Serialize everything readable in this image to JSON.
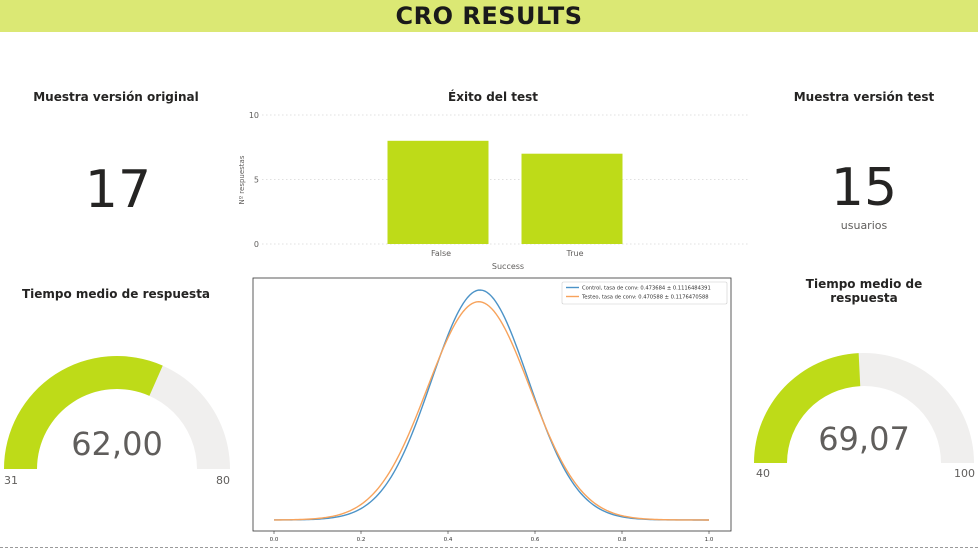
{
  "banner": {
    "title": "CRO RESULTS"
  },
  "kpi_original": {
    "title": "Muestra versión original",
    "value": "17"
  },
  "kpi_test": {
    "title": "Muestra versión test",
    "value": "15",
    "unit": "usuarios"
  },
  "gauge_left": {
    "title": "Tiempo medio de respuesta",
    "value": "62,00",
    "min_label": "31",
    "max_label": "80",
    "num_value": 62.0,
    "min": 31,
    "max": 80
  },
  "gauge_right": {
    "title": "Tiempo medio de respuesta",
    "value": "69,07",
    "min_label": "40",
    "max_label": "100",
    "num_value": 69.07,
    "min": 40,
    "max": 100
  },
  "colors": {
    "accent": "#bedb18",
    "banner": "#dbe874",
    "gauge_bg": "#f0efee",
    "control": "#4c93c7",
    "test": "#f7a35c"
  },
  "chart_data": [
    {
      "type": "bar",
      "title": "Éxito del test",
      "xlabel": "Success",
      "ylabel": "Nº respuestas",
      "categories": [
        "False",
        "True"
      ],
      "values": [
        8,
        7
      ],
      "ylim": [
        0,
        10
      ],
      "yticks": [
        "0",
        "5",
        "10"
      ],
      "grid": true
    },
    {
      "type": "line",
      "x_range": [
        0.0,
        1.0
      ],
      "xticks": [
        "0.0",
        "0.2",
        "0.4",
        "0.6",
        "0.8",
        "1.0"
      ],
      "legend_position": "top-right",
      "series": [
        {
          "name": "Control, tasa de conv: 0.473684 ± 0.1116484391",
          "mean": 0.473684,
          "std": 0.1116484391
        },
        {
          "name": "Testeo, tasa de conv: 0.470588 ± 0.1176470588",
          "mean": 0.470588,
          "std": 0.1176470588
        }
      ]
    }
  ]
}
